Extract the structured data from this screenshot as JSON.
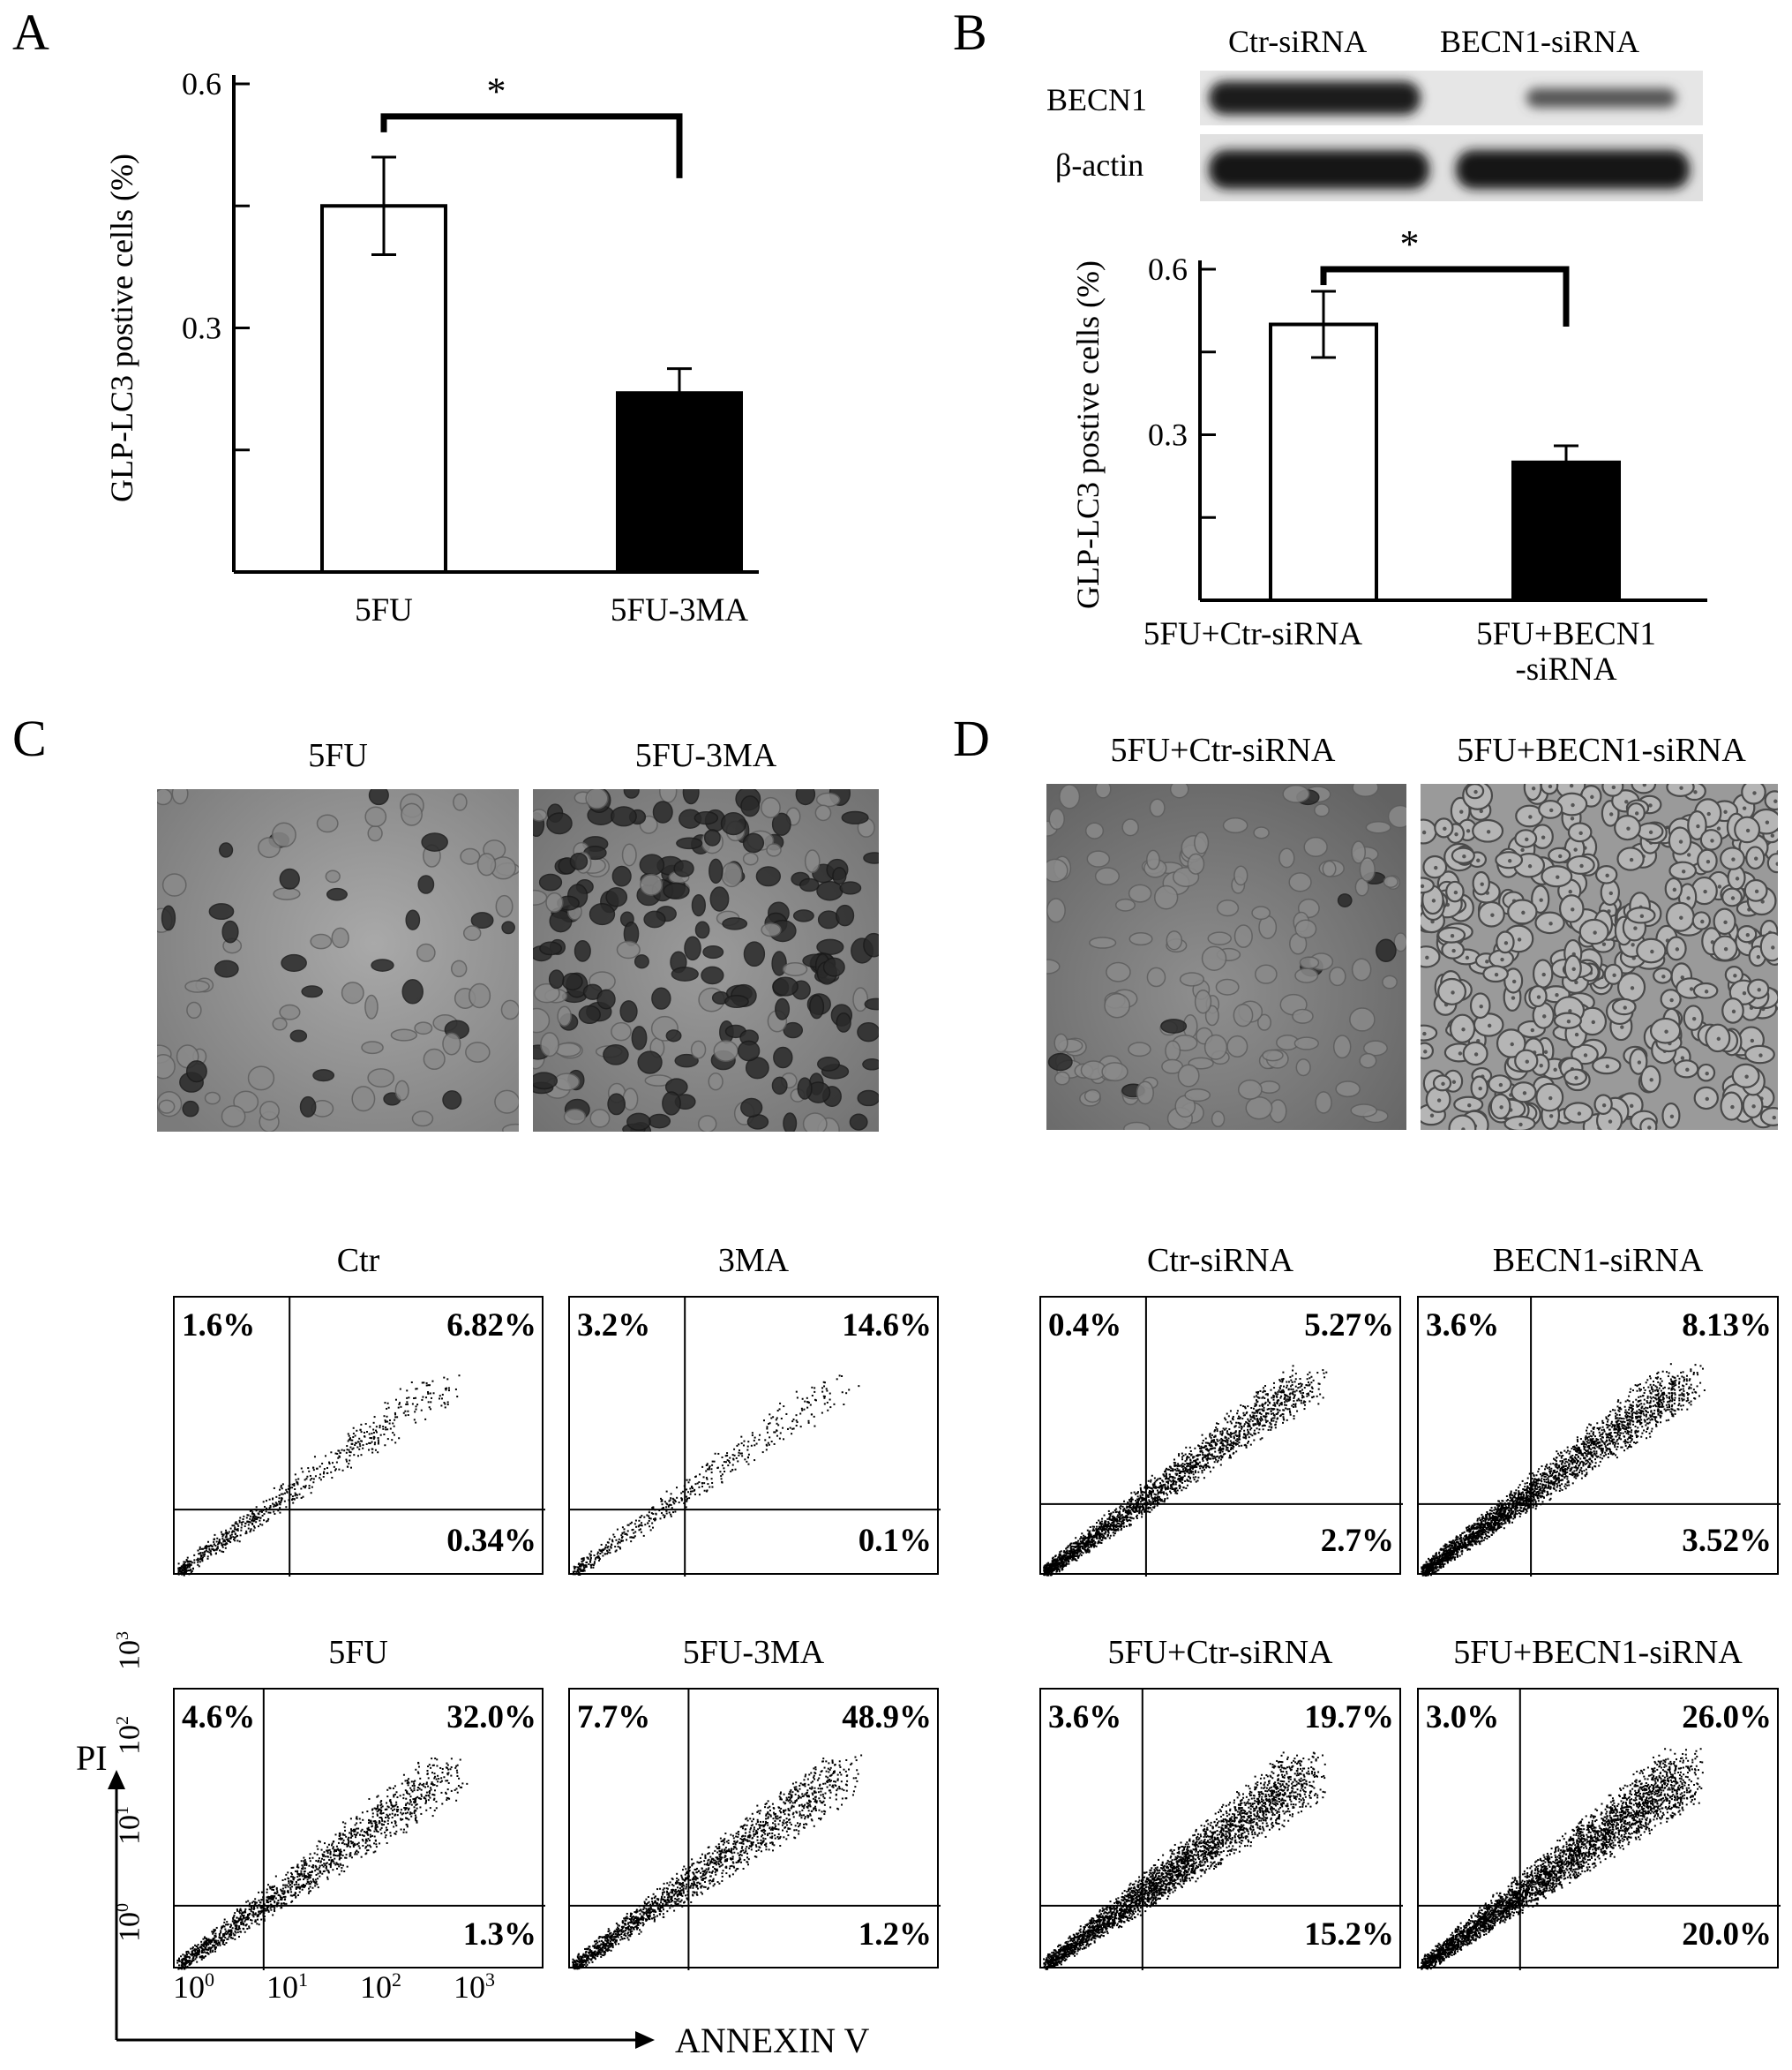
{
  "panels": {
    "a": "A",
    "b": "B",
    "c": "C",
    "d": "D"
  },
  "chart_a": {
    "chart_data": {
      "type": "bar",
      "categories": [
        "5FU",
        "5FU-3MA"
      ],
      "values": [
        0.45,
        0.22
      ],
      "errors": [
        0.06,
        0.03
      ],
      "fill_colors": [
        "#ffffff",
        "#000000"
      ],
      "ylabel": "GLP-LC3 postive cells (%)",
      "yticks": [
        "0.3",
        "0.6"
      ],
      "ylim": [
        0,
        0.6
      ],
      "significance": "*"
    }
  },
  "blot": {
    "lanes": [
      "Ctr-siRNA",
      "BECN1-siRNA"
    ],
    "rows": [
      "BECN1",
      "β-actin"
    ]
  },
  "chart_b": {
    "chart_data": {
      "type": "bar",
      "categories": [
        "5FU+Ctr-siRNA",
        "5FU+BECN1\n-siRNA"
      ],
      "category_lines": [
        [
          "5FU+Ctr-siRNA"
        ],
        [
          "5FU+BECN1",
          "-siRNA"
        ]
      ],
      "values": [
        0.5,
        0.25
      ],
      "errors": [
        0.06,
        0.03
      ],
      "fill_colors": [
        "#ffffff",
        "#000000"
      ],
      "ylabel": "GLP-LC3 postive cells (%)",
      "yticks": [
        "0.3",
        "0.6"
      ],
      "ylim": [
        0,
        0.6
      ],
      "significance": "*"
    }
  },
  "images_c": [
    "5FU",
    "5FU-3MA"
  ],
  "images_d": [
    "5FU+Ctr-siRNA",
    "5FU+BECN1-siRNA"
  ],
  "flow": {
    "plots": [
      {
        "title": "Ctr",
        "ul": "1.6%",
        "ur": "6.82%",
        "lr": "0.34%"
      },
      {
        "title": "3MA",
        "ul": "3.2%",
        "ur": "14.6%",
        "lr": "0.1%"
      },
      {
        "title": "Ctr-siRNA",
        "ul": "0.4%",
        "ur": "5.27%",
        "lr": "2.7%"
      },
      {
        "title": "BECN1-siRNA",
        "ul": "3.6%",
        "ur": "8.13%",
        "lr": "3.52%"
      },
      {
        "title": "5FU",
        "ul": "4.6%",
        "ur": "32.0%",
        "lr": "1.3%"
      },
      {
        "title": "5FU-3MA",
        "ul": "7.7%",
        "ur": "48.9%",
        "lr": "1.2%"
      },
      {
        "title": "5FU+Ctr-siRNA",
        "ul": "3.6%",
        "ur": "19.7%",
        "lr": "15.2%"
      },
      {
        "title": "5FU+BECN1-siRNA",
        "ul": "3.0%",
        "ur": "26.0%",
        "lr": "20.0%"
      }
    ],
    "ylabel": "PI",
    "xlabel": "ANNEXIN V",
    "ticks": [
      {
        "base": "10",
        "exp": "0"
      },
      {
        "base": "10",
        "exp": "1"
      },
      {
        "base": "10",
        "exp": "2"
      },
      {
        "base": "10",
        "exp": "3"
      }
    ]
  }
}
